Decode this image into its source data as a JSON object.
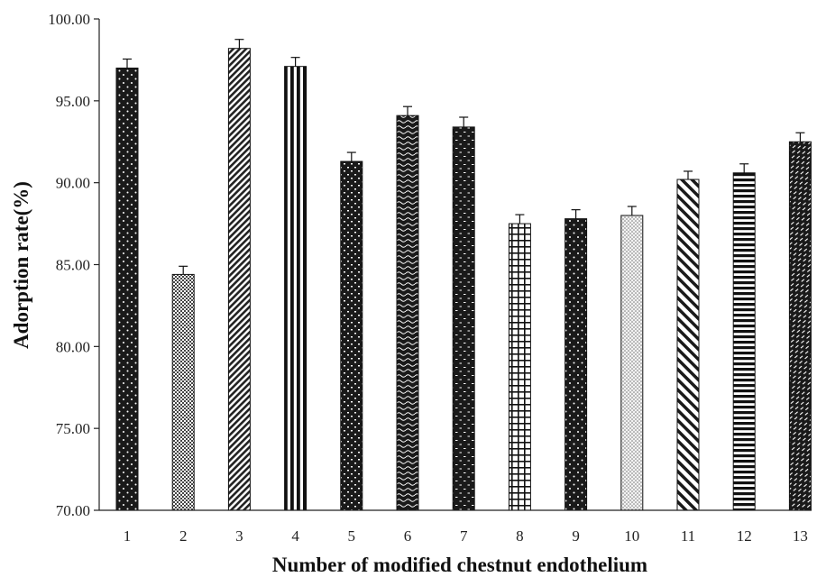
{
  "chart_data": {
    "type": "bar",
    "title": "",
    "xlabel": "Number of modified chestnut endothelium",
    "ylabel": "Adorption rate(%)",
    "ylim": [
      70,
      100
    ],
    "yticks": [
      "70.00",
      "75.00",
      "80.00",
      "85.00",
      "90.00",
      "95.00",
      "100.00"
    ],
    "categories": [
      "1",
      "2",
      "3",
      "4",
      "5",
      "6",
      "7",
      "8",
      "9",
      "10",
      "11",
      "12",
      "13"
    ],
    "values": [
      97.0,
      84.4,
      98.2,
      97.1,
      91.3,
      94.1,
      93.4,
      87.5,
      87.8,
      88.0,
      90.2,
      90.6,
      92.5
    ],
    "errors": [
      0.55,
      0.5,
      0.55,
      0.55,
      0.55,
      0.55,
      0.6,
      0.55,
      0.55,
      0.55,
      0.5,
      0.55,
      0.55
    ],
    "patterns": [
      "dots-dark",
      "checker-fine",
      "diagonal-dense",
      "vertical-stripes",
      "checker-dark",
      "wave-dark",
      "dash-dark",
      "grid-open",
      "dots-dark",
      "stipple-light",
      "diagonal-wide",
      "horizontal-stripes",
      "dash-diagonal-dark"
    ],
    "grid": false,
    "legend": "none"
  }
}
